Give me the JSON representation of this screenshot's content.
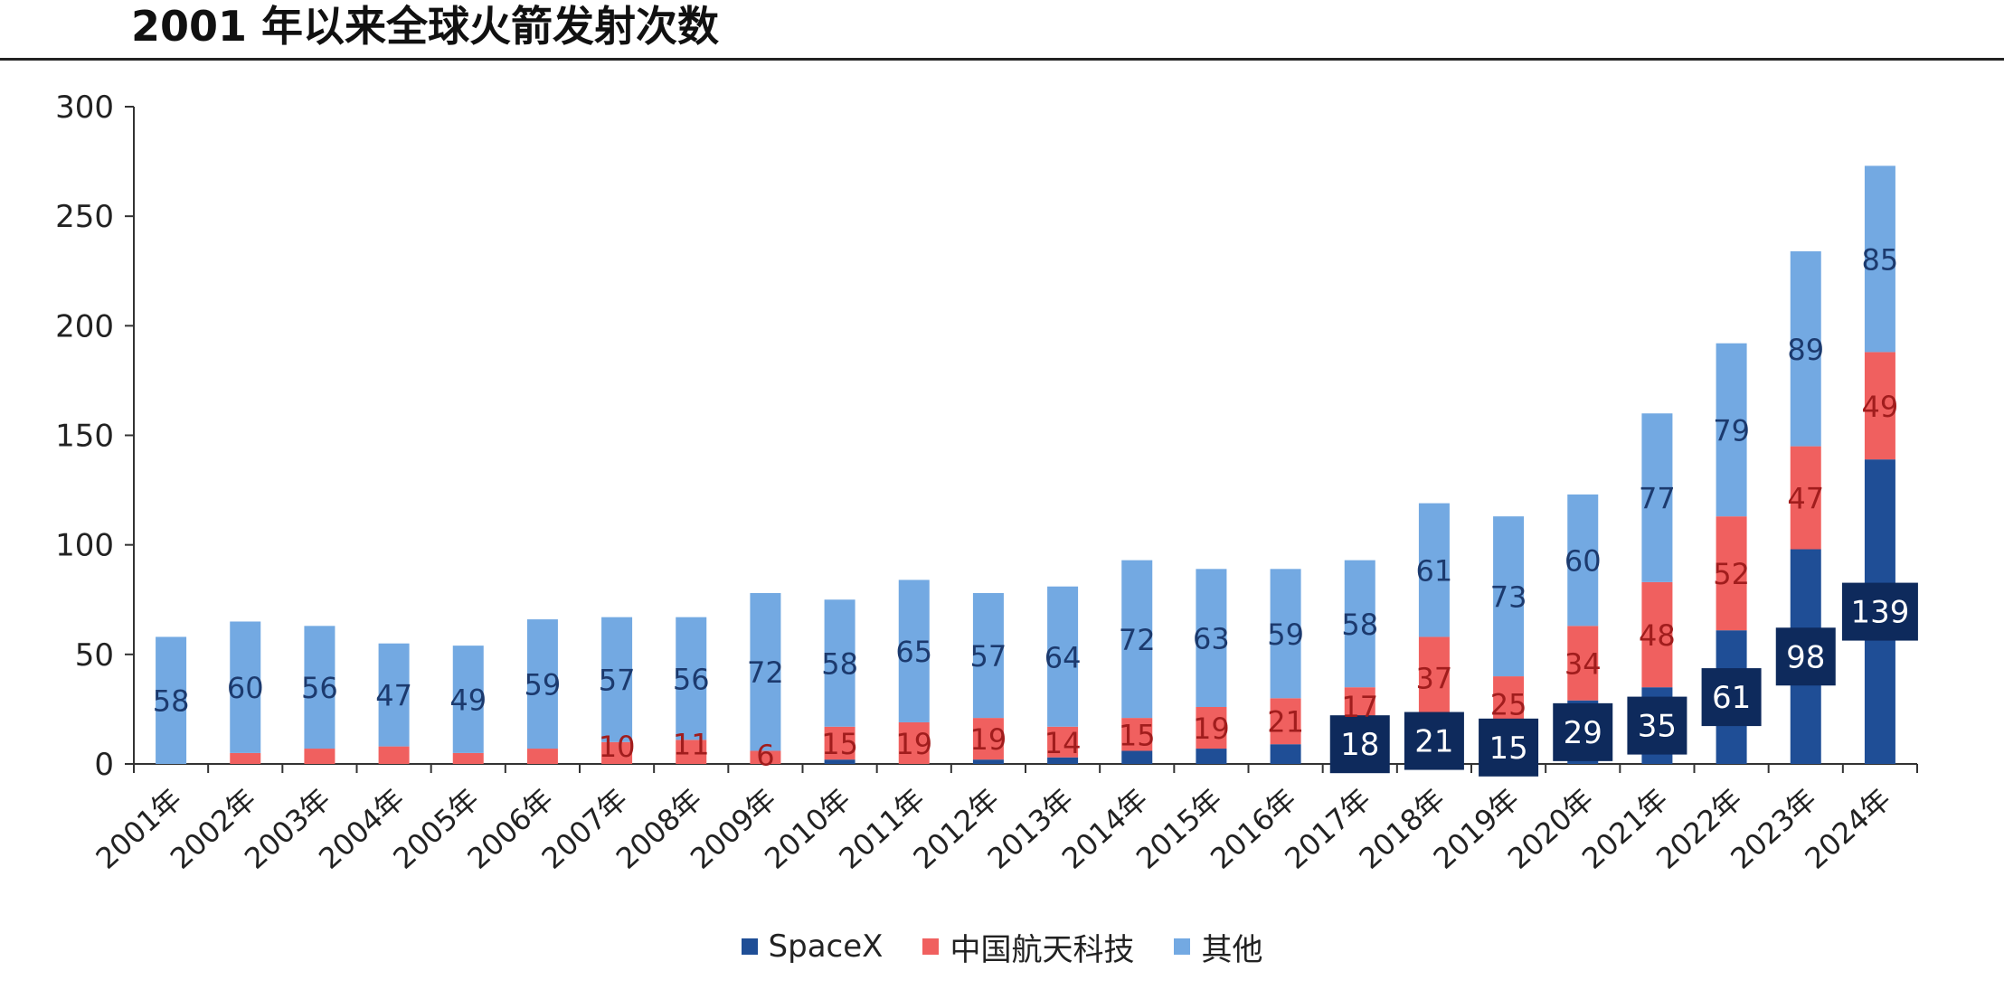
{
  "chart_data": {
    "type": "bar",
    "stacked": true,
    "title": "2001 年以来全球火箭发射次数",
    "xlabel": "",
    "ylabel": "",
    "ylim": [
      0,
      300
    ],
    "yticks": [
      "0",
      "50",
      "100",
      "150",
      "200",
      "250",
      "300"
    ],
    "categories": [
      "2001年",
      "2002年",
      "2003年",
      "2004年",
      "2005年",
      "2006年",
      "2007年",
      "2008年",
      "2009年",
      "2010年",
      "2011年",
      "2012年",
      "2013年",
      "2014年",
      "2015年",
      "2016年",
      "2017年",
      "2018年",
      "2019年",
      "2020年",
      "2021年",
      "2022年",
      "2023年",
      "2024年"
    ],
    "series": [
      {
        "name": "SpaceX",
        "color": "#1f4e96",
        "values": [
          0,
          0,
          0,
          0,
          0,
          0,
          0,
          0,
          0,
          2,
          0,
          2,
          3,
          6,
          7,
          9,
          18,
          21,
          15,
          29,
          35,
          61,
          98,
          139
        ],
        "labels": [
          "",
          "",
          "",
          "",
          "",
          "",
          "",
          "",
          "",
          "",
          "",
          "",
          "",
          "",
          "",
          "",
          "18",
          "21",
          "15",
          "29",
          "35",
          "61",
          "98",
          "139"
        ]
      },
      {
        "name": "中国航天科技",
        "color": "#f0605f",
        "values": [
          0,
          5,
          7,
          8,
          5,
          7,
          10,
          11,
          6,
          15,
          19,
          19,
          14,
          15,
          19,
          21,
          17,
          37,
          25,
          34,
          48,
          52,
          47,
          49
        ],
        "labels": [
          "",
          "",
          "",
          "",
          "",
          "",
          "10",
          "11",
          "6",
          "15",
          "19",
          "19",
          "14",
          "15",
          "19",
          "21",
          "17",
          "37",
          "25",
          "34",
          "48",
          "52",
          "47",
          "49"
        ]
      },
      {
        "name": "其他",
        "color": "#73a9e2",
        "values": [
          58,
          60,
          56,
          47,
          49,
          59,
          57,
          56,
          72,
          58,
          65,
          57,
          64,
          72,
          63,
          59,
          58,
          61,
          73,
          60,
          77,
          79,
          89,
          85
        ],
        "labels": [
          "58",
          "60",
          "56",
          "47",
          "49",
          "59",
          "57",
          "56",
          "72",
          "58",
          "65",
          "57",
          "64",
          "72",
          "63",
          "59",
          "58",
          "61",
          "73",
          "60",
          "77",
          "79",
          "89",
          "85"
        ]
      }
    ],
    "legend_position": "bottom-center",
    "grid": false
  }
}
